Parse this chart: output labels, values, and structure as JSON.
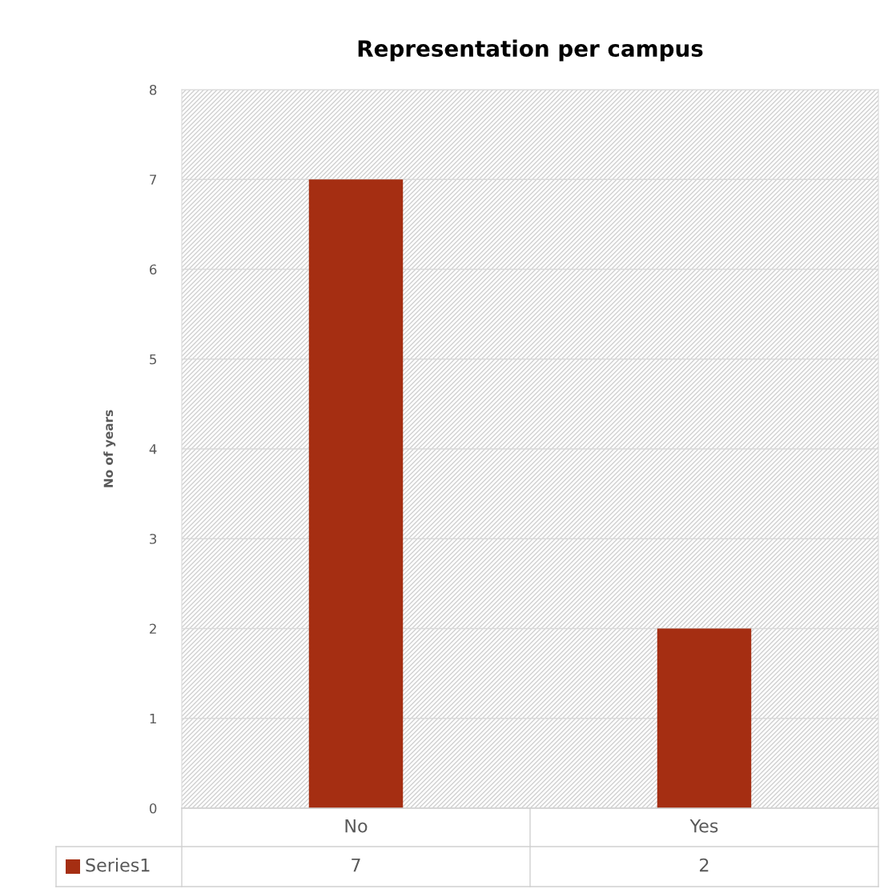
{
  "chart_data": {
    "type": "bar",
    "title": "Representation per campus",
    "ylabel": "No of years",
    "categories": [
      "No",
      "Yes"
    ],
    "series": [
      {
        "name": "Series1",
        "color": "#a52e12",
        "values": [
          7,
          2
        ]
      }
    ],
    "ylim": [
      0,
      8
    ],
    "yticks": [
      0,
      1,
      2,
      3,
      4,
      5,
      6,
      7,
      8
    ],
    "grid": "y",
    "data_labels": true
  }
}
